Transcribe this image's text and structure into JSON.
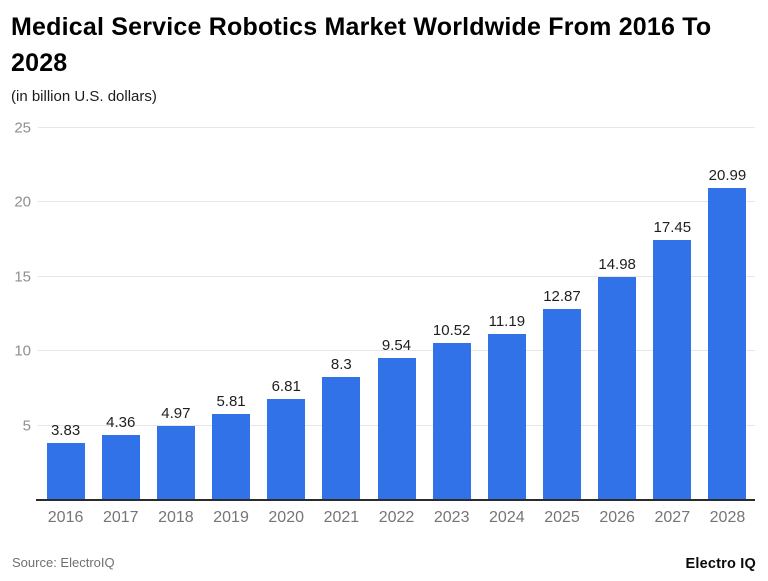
{
  "header": {
    "title": "Medical Service Robotics Market Worldwide From 2016 To 2028",
    "subtitle": "(in billion U.S. dollars)"
  },
  "chart_data": {
    "type": "bar",
    "title": "Medical Service Robotics Market Worldwide From 2016 To 2028",
    "subtitle": "(in billion U.S. dollars)",
    "categories": [
      "2016",
      "2017",
      "2018",
      "2019",
      "2020",
      "2021",
      "2022",
      "2023",
      "2024",
      "2025",
      "2026",
      "2027",
      "2028"
    ],
    "values": [
      3.83,
      4.36,
      4.97,
      5.81,
      6.81,
      8.3,
      9.54,
      10.52,
      11.19,
      12.87,
      14.98,
      17.45,
      20.99
    ],
    "value_labels": [
      "3.83",
      "4.36",
      "4.97",
      "5.81",
      "6.81",
      "8.3",
      "9.54",
      "10.52",
      "11.19",
      "12.87",
      "14.98",
      "17.45",
      "20.99"
    ],
    "xlabel": "",
    "ylabel": "",
    "ylim": [
      0,
      25
    ],
    "yticks": [
      5,
      10,
      15,
      20,
      25
    ],
    "grid": true,
    "legend": "none",
    "bar_color": "#3272e8",
    "gridline_color": "#e7e7e7"
  },
  "footer": {
    "source": "Source: ElectroIQ",
    "brand": "Electro IQ"
  }
}
